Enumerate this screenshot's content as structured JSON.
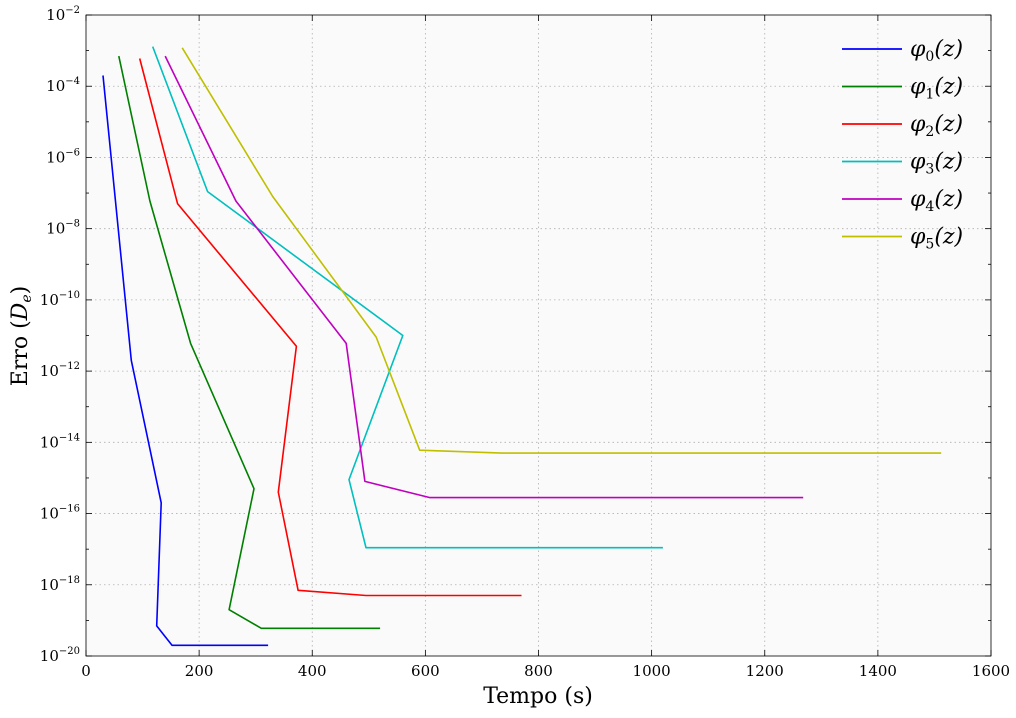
{
  "chart_data": {
    "type": "line",
    "xlabel": "Tempo (s)",
    "ylabel": "Erro (De)",
    "ylabel_parts": {
      "main": "Erro (",
      "var": "D",
      "sub": "e",
      "close": ")"
    },
    "xlim": [
      0,
      1600
    ],
    "ylim_exponent": [
      -20,
      -2
    ],
    "y_scale": "log",
    "grid": true,
    "legend_position": "top-right",
    "x_ticks": [
      "0",
      "200",
      "400",
      "600",
      "800",
      "1000",
      "1200",
      "1400",
      "1600"
    ],
    "y_ticks": [
      {
        "base": "10",
        "exp": "−20"
      },
      {
        "base": "10",
        "exp": "−18"
      },
      {
        "base": "10",
        "exp": "−16"
      },
      {
        "base": "10",
        "exp": "−14"
      },
      {
        "base": "10",
        "exp": "−12"
      },
      {
        "base": "10",
        "exp": "−10"
      },
      {
        "base": "10",
        "exp": "−8"
      },
      {
        "base": "10",
        "exp": "−6"
      },
      {
        "base": "10",
        "exp": "−4"
      },
      {
        "base": "10",
        "exp": "−2"
      }
    ],
    "series": [
      {
        "name": "φ0(z)",
        "label_main": "φ",
        "label_sub": "0",
        "label_arg": "(z)",
        "color": "#0000ff",
        "points": [
          [
            30,
            0.0002
          ],
          [
            80,
            2e-12
          ],
          [
            133,
            2e-16
          ],
          [
            125,
            7e-20
          ],
          [
            152,
            2e-20
          ],
          [
            322,
            2e-20
          ]
        ]
      },
      {
        "name": "φ1(z)",
        "label_main": "φ",
        "label_sub": "1",
        "label_arg": "(z)",
        "color": "#008000",
        "points": [
          [
            58,
            0.0007
          ],
          [
            113,
            6e-08
          ],
          [
            185,
            6e-12
          ],
          [
            297,
            5e-16
          ],
          [
            253,
            2e-19
          ],
          [
            310,
            6e-20
          ],
          [
            520,
            6e-20
          ]
        ]
      },
      {
        "name": "φ2(z)",
        "label_main": "φ",
        "label_sub": "2",
        "label_arg": "(z)",
        "color": "#ff0000",
        "points": [
          [
            95,
            0.0006
          ],
          [
            162,
            5e-08
          ],
          [
            372,
            5e-12
          ],
          [
            340,
            4e-16
          ],
          [
            375,
            7e-19
          ],
          [
            495,
            5e-19
          ],
          [
            770,
            5e-19
          ]
        ]
      },
      {
        "name": "φ3(z)",
        "label_main": "φ",
        "label_sub": "3",
        "label_arg": "(z)",
        "color": "#00bfbf",
        "points": [
          [
            118,
            0.0013
          ],
          [
            215,
            1.1e-07
          ],
          [
            560,
            1e-11
          ],
          [
            465,
            9e-16
          ],
          [
            495,
            1.1e-17
          ],
          [
            1020,
            1.1e-17
          ]
        ]
      },
      {
        "name": "φ4(z)",
        "label_main": "φ",
        "label_sub": "4",
        "label_arg": "(z)",
        "color": "#bf00bf",
        "points": [
          [
            140,
            0.0007
          ],
          [
            265,
            6e-08
          ],
          [
            460,
            6e-12
          ],
          [
            493,
            8e-16
          ],
          [
            608,
            2.8e-16
          ],
          [
            1268,
            2.8e-16
          ]
        ]
      },
      {
        "name": "φ5(z)",
        "label_main": "φ",
        "label_sub": "5",
        "label_arg": "(z)",
        "color": "#bfbf00",
        "points": [
          [
            170,
            0.0012
          ],
          [
            330,
            8e-08
          ],
          [
            513,
            9e-12
          ],
          [
            590,
            6e-15
          ],
          [
            735,
            5e-15
          ],
          [
            1512,
            5e-15
          ]
        ]
      }
    ]
  }
}
